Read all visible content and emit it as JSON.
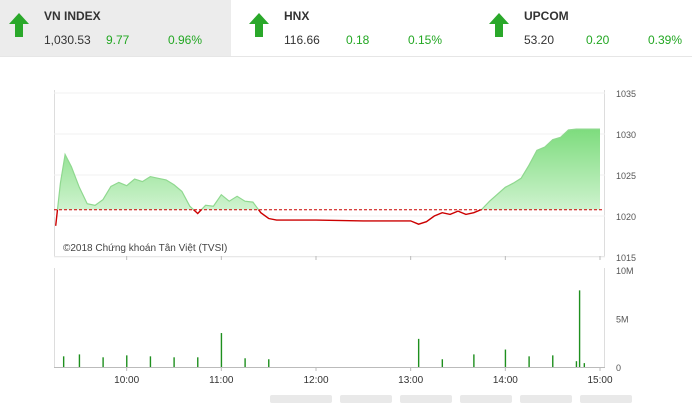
{
  "indices": [
    {
      "name": "VN INDEX",
      "value": "1,030.53",
      "change": "9.77",
      "percent": "0.96%",
      "active": true
    },
    {
      "name": "HNX",
      "value": "116.66",
      "change": "0.18",
      "percent": "0.15%",
      "active": false
    },
    {
      "name": "UPCOM",
      "value": "53.20",
      "change": "0.20",
      "percent": "0.39%",
      "active": false
    }
  ],
  "icons": {
    "up": "arrow-up-icon"
  },
  "colors": {
    "up": "#2aa82a",
    "line_below": "#cc0000",
    "reference": "#cc0000",
    "area": "#9be69b",
    "volume": "#1e8f1e"
  },
  "chart_data": [
    {
      "type": "area",
      "y_ticks": [
        "1035",
        "1030",
        "1025",
        "1020",
        "1015"
      ],
      "ylim": [
        1015,
        1035
      ],
      "x_ticks": [
        "10:00",
        "11:00",
        "12:00",
        "13:00",
        "14:00",
        "15:00"
      ],
      "reference": 1020.76,
      "x": [
        "09:15",
        "09:18",
        "09:21",
        "09:25",
        "09:30",
        "09:35",
        "09:40",
        "09:45",
        "09:50",
        "09:55",
        "10:00",
        "10:05",
        "10:10",
        "10:15",
        "10:20",
        "10:25",
        "10:30",
        "10:35",
        "10:40",
        "10:45",
        "10:50",
        "10:55",
        "11:00",
        "11:05",
        "11:10",
        "11:15",
        "11:20",
        "11:25",
        "11:30",
        "11:35",
        "11:45",
        "12:00",
        "12:30",
        "13:00",
        "13:05",
        "13:10",
        "13:15",
        "13:20",
        "13:25",
        "13:30",
        "13:35",
        "13:40",
        "13:45",
        "13:50",
        "14:00",
        "14:05",
        "14:10",
        "14:15",
        "14:20",
        "14:25",
        "14:30",
        "14:35",
        "14:40",
        "14:45",
        "15:00"
      ],
      "values": [
        1018.8,
        1024,
        1027.5,
        1026,
        1023.5,
        1021.5,
        1021.3,
        1022,
        1023.6,
        1024.1,
        1023.7,
        1024.5,
        1024.2,
        1024.8,
        1024.6,
        1024.4,
        1023.8,
        1023,
        1021.2,
        1020.3,
        1021.3,
        1021.2,
        1022.6,
        1021.8,
        1022.4,
        1021.8,
        1021.7,
        1020.4,
        1019.7,
        1019.5,
        1019.5,
        1019.5,
        1019.4,
        1019.4,
        1019.0,
        1019.3,
        1020.0,
        1020.4,
        1020.2,
        1020.6,
        1020.2,
        1020.4,
        1020.8,
        1021.8,
        1023.5,
        1024.0,
        1024.6,
        1026.2,
        1028.0,
        1028.4,
        1029.3,
        1029.6,
        1030.5,
        1030.6,
        1030.6
      ],
      "watermark": "©2018 Chứng khoán Tân Việt (TVSI)"
    },
    {
      "type": "bar",
      "y_ticks": [
        "10M",
        "5M",
        "0"
      ],
      "ylim": [
        0,
        10
      ],
      "x_ticks": [
        "10:00",
        "11:00",
        "12:00",
        "13:00",
        "14:00",
        "15:00"
      ],
      "x": [
        "09:20",
        "09:30",
        "09:45",
        "10:00",
        "10:15",
        "10:30",
        "10:45",
        "11:00",
        "11:15",
        "11:30",
        "13:05",
        "13:20",
        "13:40",
        "14:00",
        "14:15",
        "14:30",
        "14:45",
        "14:47",
        "14:50"
      ],
      "values": [
        1.1,
        1.3,
        1.0,
        1.2,
        1.1,
        1.0,
        1.0,
        3.5,
        0.9,
        0.8,
        2.9,
        0.8,
        1.3,
        1.8,
        1.1,
        1.2,
        0.6,
        7.9,
        0.4
      ]
    }
  ]
}
